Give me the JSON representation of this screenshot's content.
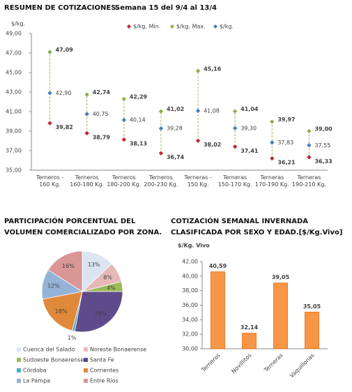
{
  "chart_data": [
    {
      "type": "dot",
      "title": "RESUMEN DE COTIZACIONES.",
      "subtitle": "Semana 15 del 9/4 al 13/4",
      "y_label": "$/kg.",
      "categories": [
        "Terneros - 160 Kg.",
        "Terneros 160-180 Kg.",
        "Terneros 180-200 Kg.",
        "Terneros 200-230 Kg.",
        "Terneras - 150 Kg.",
        "Terneras 150-170 Kg.",
        "Terneras 170-190 Kg.",
        "Terneras 190-210 Kg."
      ],
      "series": [
        {
          "name": "$/kg. Min.",
          "color": "#c0282d",
          "values": [
            39.82,
            38.79,
            38.13,
            36.74,
            38.02,
            37.41,
            36.21,
            36.33
          ],
          "value_labels": [
            "39,82",
            "38,79",
            "38,13",
            "36,74",
            "38,02",
            "37,41",
            "36,21",
            "36,33"
          ]
        },
        {
          "name": "$/kg. Max.",
          "color": "#8db04a",
          "values": [
            47.09,
            42.74,
            42.29,
            41.02,
            45.16,
            41.04,
            39.97,
            39.0
          ],
          "value_labels": [
            "47,09",
            "42,74",
            "42,29",
            "41,02",
            "45,16",
            "41,04",
            "39,97",
            "39,00"
          ]
        },
        {
          "name": "$/kg.",
          "color": "#4a7ebb",
          "values": [
            42.9,
            40.75,
            40.14,
            39.28,
            41.08,
            39.3,
            37.83,
            37.55
          ],
          "value_labels": [
            "42,90",
            "40,75",
            "40,14",
            "39,28",
            "41,08",
            "39,30",
            "37,83",
            "37,55"
          ]
        }
      ],
      "ylim": [
        35,
        49
      ],
      "yticks": [
        {
          "value": 35,
          "label": "35,00"
        },
        {
          "value": 37,
          "label": "37,00"
        },
        {
          "value": 39,
          "label": "39,00"
        },
        {
          "value": 41,
          "label": "41,00"
        },
        {
          "value": 43,
          "label": "43,00"
        },
        {
          "value": 45,
          "label": "45,00"
        },
        {
          "value": 47,
          "label": "47,00"
        },
        {
          "value": 49,
          "label": "49,00"
        }
      ]
    },
    {
      "type": "pie",
      "title": "PARTICIPACIÓN PORCENTUAL DEL VOLUMEN COMERCIALIZADO POR ZONA.",
      "categories": [
        "Cuenca del Salado",
        "Noreste Bonaerense",
        "Sudoeste Bonaerense",
        "Santa Fe",
        "Córdoba",
        "Corrientes",
        "La Pampa",
        "Entre Ríos"
      ],
      "values": [
        13,
        8,
        4,
        28,
        1,
        18,
        12,
        16
      ],
      "value_labels": [
        "13%",
        "8%",
        "4%",
        "28%",
        "1%",
        "18%",
        "12%",
        "16%"
      ],
      "colors": [
        "#dbe5f1",
        "#e6b9b8",
        "#9bbb59",
        "#5f4b8b",
        "#4bacc6",
        "#e0893a",
        "#95b3d7",
        "#d99694"
      ]
    },
    {
      "type": "bar",
      "title": "COTIZACIÓN SEMANAL INVERNADA CLASIFICADA POR SEXO Y EDAD.[$/Kg.Vivo]",
      "y_label": "$/Kg. Vivo",
      "categories": [
        "Terneros",
        "Novillitos",
        "Terneras",
        "Vaquillonas"
      ],
      "values": [
        40.59,
        32.14,
        39.05,
        35.05
      ],
      "value_labels": [
        "40,59",
        "32,14",
        "39,05",
        "35,05"
      ],
      "color": "#f79646",
      "ylim": [
        30,
        42
      ],
      "yticks": [
        {
          "value": 30,
          "label": "30,00"
        },
        {
          "value": 32,
          "label": "32,00"
        },
        {
          "value": 34,
          "label": "34,00"
        },
        {
          "value": 36,
          "label": "36,00"
        },
        {
          "value": 38,
          "label": "38,00"
        },
        {
          "value": 40,
          "label": "40,00"
        },
        {
          "value": 42,
          "label": "42,00"
        }
      ]
    }
  ]
}
